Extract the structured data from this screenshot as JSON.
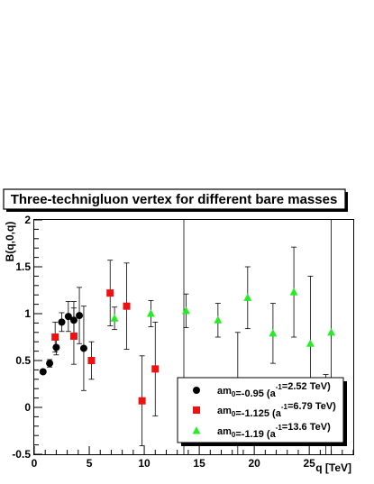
{
  "chart_data": {
    "type": "scatter",
    "title": "Three-technigluon vertex for different bare masses",
    "xlabel": "q [TeV]",
    "ylabel": "B(q,0,q)",
    "xlim": [
      0,
      29
    ],
    "ylim": [
      -0.5,
      2
    ],
    "x_ticks": [
      0,
      5,
      10,
      15,
      20,
      25
    ],
    "y_ticks": [
      -0.5,
      0,
      0.5,
      1,
      1.5,
      2
    ],
    "y_tick_labels": [
      "-0.5",
      "0",
      "0.5",
      "1",
      "1.5",
      "2"
    ],
    "grid": false,
    "legend_position": "bottom-right",
    "series": [
      {
        "name_main": "am",
        "name_sub": "0",
        "name_rest": "=-0.95 (a",
        "name_sup": "-1",
        "name_end": "=2.52 TeV)",
        "marker": "circle",
        "color": "#000000",
        "points": [
          {
            "x": 0.8,
            "y": 0.38,
            "err": 0.02
          },
          {
            "x": 1.4,
            "y": 0.47,
            "err": 0.04
          },
          {
            "x": 2.0,
            "y": 0.64,
            "err": 0.08
          },
          {
            "x": 2.5,
            "y": 0.91,
            "err": 0.1
          },
          {
            "x": 3.1,
            "y": 0.97,
            "err": 0.16
          },
          {
            "x": 3.6,
            "y": 0.93,
            "err": 0.2
          },
          {
            "x": 4.1,
            "y": 0.98,
            "err": 0.3
          },
          {
            "x": 4.5,
            "y": 0.63,
            "err": 0.45
          }
        ]
      },
      {
        "name_main": "am",
        "name_sub": "0",
        "name_rest": "=-1.125 (a",
        "name_sup": "-1",
        "name_end": "=6.79 TeV)",
        "marker": "square",
        "color": "#ee1111",
        "points": [
          {
            "x": 1.9,
            "y": 0.75,
            "err": 0.16
          },
          {
            "x": 3.6,
            "y": 0.76,
            "err": 0.3
          },
          {
            "x": 5.2,
            "y": 0.5,
            "err": 0.2
          },
          {
            "x": 6.9,
            "y": 1.22,
            "err": 0.35
          },
          {
            "x": 8.4,
            "y": 1.08,
            "err": 0.46
          },
          {
            "x": 9.8,
            "y": 0.07,
            "err": 0.48
          },
          {
            "x": 11.0,
            "y": 0.41,
            "err": 0.5
          },
          {
            "x": 13.6,
            "y": 0.13,
            "err": 2.6
          },
          {
            "x": 18.5,
            "y": 0.1,
            "err": 0.7
          },
          {
            "x": 26.5,
            "y": -0.5,
            "err": 0.85
          }
        ]
      },
      {
        "name_main": "am",
        "name_sub": "0",
        "name_rest": "=-1.19 (a",
        "name_sup": "-1",
        "name_end": "=13.6 TeV)",
        "marker": "triangle",
        "color": "#22ee22",
        "points": [
          {
            "x": 7.3,
            "y": 0.95,
            "err": 0.12
          },
          {
            "x": 10.6,
            "y": 1.0,
            "err": 0.14
          },
          {
            "x": 13.8,
            "y": 1.03,
            "err": 0.18
          },
          {
            "x": 16.7,
            "y": 0.93,
            "err": 0.18
          },
          {
            "x": 19.4,
            "y": 1.17,
            "err": 0.33
          },
          {
            "x": 21.7,
            "y": 0.79,
            "err": 0.32
          },
          {
            "x": 23.6,
            "y": 1.23,
            "err": 0.48
          },
          {
            "x": 25.1,
            "y": 0.68,
            "err": 0.72
          },
          {
            "x": 27.0,
            "y": 0.8,
            "err": 2.5
          }
        ]
      }
    ]
  }
}
